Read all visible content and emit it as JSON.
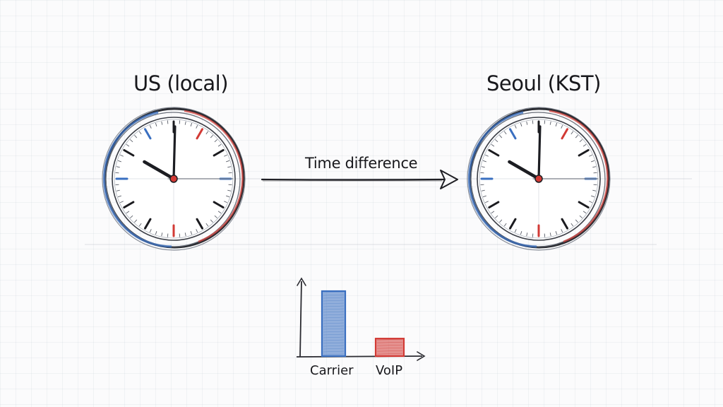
{
  "clocks": [
    {
      "title": "US (local)",
      "time": {
        "hour": 10,
        "minute": 0,
        "second": 15
      }
    },
    {
      "title": "Seoul (KST)",
      "time": {
        "hour": 10,
        "minute": 0,
        "second": 15
      }
    }
  ],
  "arrow": {
    "label": "Time difference"
  },
  "chart_data": {
    "type": "bar",
    "categories": [
      "Carrier",
      "VoIP"
    ],
    "values": [
      1.0,
      0.27
    ],
    "title": "",
    "xlabel": "",
    "ylabel": "",
    "colors": [
      "#3a6fc0",
      "#d23a35"
    ]
  },
  "colors": {
    "blue": "#3a6fc0",
    "red": "#d23a35",
    "ink": "#1b1b1f"
  }
}
